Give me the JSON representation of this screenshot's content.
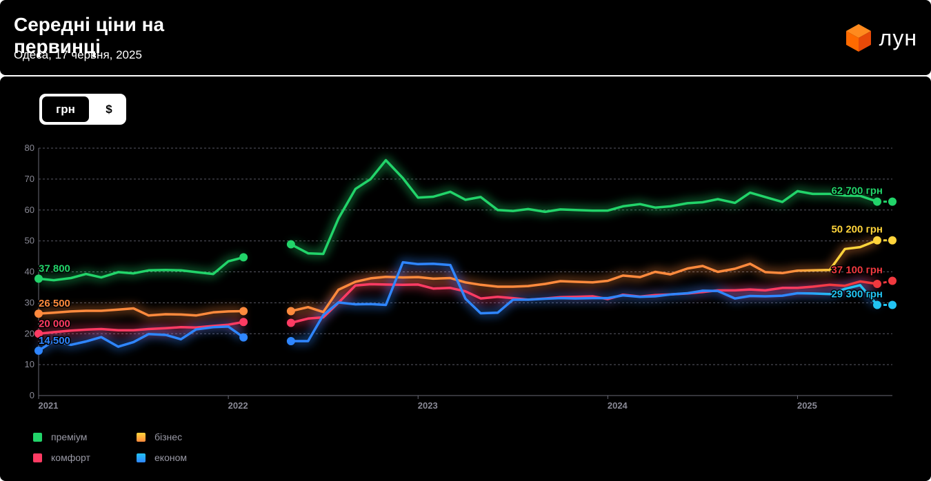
{
  "header": {
    "title": "Середні ціни на первинці",
    "subtitle": "Одеса, 17 червня, 2025",
    "logo_text": "лун",
    "logo_icon": "orange-cube-icon"
  },
  "currency_toggle": {
    "options": [
      "грн",
      "$"
    ],
    "selected": "грн"
  },
  "chart_data": {
    "type": "line",
    "title": "Середні ціни на первинці",
    "x_unit": "year",
    "xlim": [
      2021.0,
      2025.5
    ],
    "ylim": [
      0,
      80
    ],
    "yticks": [
      0,
      10,
      20,
      30,
      40,
      50,
      60,
      70,
      80
    ],
    "xticks": [
      "2021",
      "2022",
      "2023",
      "2024",
      "2025"
    ],
    "grid": "horizontal-dashed",
    "legend_position": "bottom-left",
    "series": [
      {
        "name": "преміум",
        "color": "#22d46a",
        "start_label": "37 800",
        "end_label": "62 700 грн",
        "segments": [
          [
            [
              2021.0,
              37.8
            ],
            [
              2021.08,
              37.3
            ],
            [
              2021.17,
              38.0
            ],
            [
              2021.25,
              39.3
            ],
            [
              2021.33,
              38.2
            ],
            [
              2021.42,
              39.9
            ],
            [
              2021.5,
              39.5
            ],
            [
              2021.58,
              40.5
            ],
            [
              2021.67,
              40.6
            ],
            [
              2021.75,
              40.5
            ],
            [
              2021.83,
              39.9
            ],
            [
              2021.92,
              39.3
            ],
            [
              2022.0,
              43.4
            ],
            [
              2022.08,
              44.7
            ]
          ],
          [
            [
              2022.33,
              48.9
            ],
            [
              2022.42,
              46.0
            ],
            [
              2022.5,
              45.8
            ],
            [
              2022.58,
              57.2
            ],
            [
              2022.67,
              66.8
            ],
            [
              2022.75,
              70.0
            ],
            [
              2022.83,
              76.1
            ],
            [
              2022.92,
              70.3
            ],
            [
              2023.0,
              64.0
            ],
            [
              2023.08,
              64.3
            ],
            [
              2023.17,
              65.9
            ],
            [
              2023.25,
              63.3
            ],
            [
              2023.33,
              64.2
            ],
            [
              2023.42,
              60.0
            ],
            [
              2023.5,
              59.7
            ],
            [
              2023.58,
              60.3
            ],
            [
              2023.67,
              59.4
            ],
            [
              2023.75,
              60.2
            ],
            [
              2023.83,
              60.0
            ],
            [
              2023.92,
              59.8
            ],
            [
              2024.0,
              59.8
            ],
            [
              2024.08,
              61.2
            ],
            [
              2024.17,
              61.9
            ],
            [
              2024.25,
              60.8
            ],
            [
              2024.33,
              61.2
            ],
            [
              2024.42,
              62.2
            ],
            [
              2024.5,
              62.5
            ],
            [
              2024.58,
              63.5
            ],
            [
              2024.67,
              62.3
            ],
            [
              2024.75,
              65.6
            ],
            [
              2024.83,
              64.2
            ],
            [
              2024.92,
              62.6
            ],
            [
              2025.0,
              66.1
            ],
            [
              2025.08,
              65.2
            ],
            [
              2025.17,
              65.2
            ],
            [
              2025.25,
              64.7
            ],
            [
              2025.33,
              64.6
            ],
            [
              2025.42,
              62.7
            ]
          ]
        ],
        "last_point": [
          2025.5,
          62.7
        ]
      },
      {
        "name": "бізнес",
        "color": "#ff8a3d",
        "end_color": "#ffd43b",
        "start_label": "26 500",
        "end_label": "50 200 грн",
        "segments": [
          [
            [
              2021.0,
              26.5
            ],
            [
              2021.08,
              26.8
            ],
            [
              2021.17,
              27.2
            ],
            [
              2021.25,
              27.4
            ],
            [
              2021.33,
              27.4
            ],
            [
              2021.42,
              27.8
            ],
            [
              2021.5,
              28.2
            ],
            [
              2021.58,
              25.9
            ],
            [
              2021.67,
              26.3
            ],
            [
              2021.75,
              26.2
            ],
            [
              2021.83,
              25.9
            ],
            [
              2021.92,
              26.9
            ],
            [
              2022.0,
              27.2
            ],
            [
              2022.08,
              27.3
            ]
          ],
          [
            [
              2022.33,
              27.3
            ],
            [
              2022.42,
              28.6
            ],
            [
              2022.5,
              27.0
            ],
            [
              2022.58,
              34.2
            ],
            [
              2022.67,
              36.8
            ],
            [
              2022.75,
              37.9
            ],
            [
              2022.83,
              38.4
            ],
            [
              2022.92,
              38.2
            ],
            [
              2023.0,
              38.3
            ],
            [
              2023.08,
              37.8
            ],
            [
              2023.17,
              38.0
            ],
            [
              2023.25,
              36.6
            ],
            [
              2023.33,
              35.8
            ],
            [
              2023.42,
              35.2
            ],
            [
              2023.5,
              35.2
            ],
            [
              2023.58,
              35.4
            ],
            [
              2023.67,
              36.1
            ],
            [
              2023.75,
              37.0
            ],
            [
              2023.83,
              36.8
            ],
            [
              2023.92,
              36.6
            ],
            [
              2024.0,
              37.1
            ],
            [
              2024.08,
              38.8
            ],
            [
              2024.17,
              38.3
            ],
            [
              2024.25,
              40.0
            ],
            [
              2024.33,
              39.2
            ],
            [
              2024.42,
              41.1
            ],
            [
              2024.5,
              41.9
            ],
            [
              2024.58,
              40.0
            ],
            [
              2024.67,
              41.0
            ],
            [
              2024.75,
              42.6
            ],
            [
              2024.83,
              39.9
            ],
            [
              2024.92,
              39.6
            ],
            [
              2025.0,
              40.4
            ],
            [
              2025.08,
              40.5
            ],
            [
              2025.17,
              40.6
            ],
            [
              2025.25,
              47.4
            ],
            [
              2025.33,
              48.0
            ],
            [
              2025.42,
              50.2
            ]
          ]
        ],
        "last_point": [
          2025.5,
          50.2
        ]
      },
      {
        "name": "комфорт",
        "color": "#ff3b63",
        "end_color": "#f0393f",
        "start_label": "20 000",
        "end_label": "37 100 грн",
        "segments": [
          [
            [
              2021.0,
              20.0
            ],
            [
              2021.08,
              20.5
            ],
            [
              2021.17,
              21.0
            ],
            [
              2021.25,
              21.3
            ],
            [
              2021.33,
              21.5
            ],
            [
              2021.42,
              21.1
            ],
            [
              2021.5,
              21.1
            ],
            [
              2021.58,
              21.5
            ],
            [
              2021.67,
              21.8
            ],
            [
              2021.75,
              22.1
            ],
            [
              2021.83,
              22.0
            ],
            [
              2021.92,
              22.5
            ],
            [
              2022.0,
              22.9
            ],
            [
              2022.08,
              23.8
            ]
          ],
          [
            [
              2022.33,
              23.5
            ],
            [
              2022.42,
              24.9
            ],
            [
              2022.5,
              25.3
            ],
            [
              2022.58,
              30.0
            ],
            [
              2022.67,
              35.6
            ],
            [
              2022.75,
              36.0
            ],
            [
              2022.83,
              35.9
            ],
            [
              2022.92,
              35.8
            ],
            [
              2023.0,
              35.9
            ],
            [
              2023.08,
              34.6
            ],
            [
              2023.17,
              34.8
            ],
            [
              2023.25,
              33.7
            ],
            [
              2023.33,
              31.4
            ],
            [
              2023.42,
              31.9
            ],
            [
              2023.5,
              31.5
            ],
            [
              2023.58,
              31.0
            ],
            [
              2023.67,
              31.4
            ],
            [
              2023.75,
              31.8
            ],
            [
              2023.83,
              31.9
            ],
            [
              2023.92,
              32.1
            ],
            [
              2024.0,
              31.2
            ],
            [
              2024.08,
              32.6
            ],
            [
              2024.17,
              32.0
            ],
            [
              2024.25,
              32.5
            ],
            [
              2024.33,
              32.7
            ],
            [
              2024.42,
              33.0
            ],
            [
              2024.5,
              33.5
            ],
            [
              2024.58,
              34.0
            ],
            [
              2024.67,
              34.0
            ],
            [
              2024.75,
              34.3
            ],
            [
              2024.83,
              34.0
            ],
            [
              2024.92,
              34.8
            ],
            [
              2025.0,
              34.8
            ],
            [
              2025.08,
              35.2
            ],
            [
              2025.17,
              35.8
            ],
            [
              2025.25,
              35.5
            ],
            [
              2025.33,
              36.9
            ],
            [
              2025.42,
              36.1
            ]
          ]
        ],
        "last_point": [
          2025.5,
          37.1
        ]
      },
      {
        "name": "економ",
        "color": "#2f86ff",
        "end_color": "#22c3f2",
        "start_label": "14 500",
        "end_label": "29 300 грн",
        "segments": [
          [
            [
              2021.0,
              14.5
            ],
            [
              2021.08,
              17.7
            ],
            [
              2021.17,
              16.4
            ],
            [
              2021.25,
              17.5
            ],
            [
              2021.33,
              18.9
            ],
            [
              2021.42,
              15.8
            ],
            [
              2021.5,
              17.3
            ],
            [
              2021.58,
              19.9
            ],
            [
              2021.67,
              19.6
            ],
            [
              2021.75,
              18.2
            ],
            [
              2021.83,
              21.4
            ],
            [
              2021.92,
              22.1
            ],
            [
              2022.0,
              22.3
            ],
            [
              2022.08,
              18.8
            ]
          ],
          [
            [
              2022.33,
              17.6
            ],
            [
              2022.42,
              17.6
            ],
            [
              2022.5,
              26.0
            ],
            [
              2022.58,
              30.1
            ],
            [
              2022.67,
              29.5
            ],
            [
              2022.75,
              29.6
            ],
            [
              2022.83,
              29.3
            ],
            [
              2022.92,
              43.1
            ],
            [
              2023.0,
              42.5
            ],
            [
              2023.08,
              42.6
            ],
            [
              2023.17,
              42.2
            ],
            [
              2023.25,
              31.3
            ],
            [
              2023.33,
              26.6
            ],
            [
              2023.42,
              26.8
            ],
            [
              2023.5,
              31.0
            ],
            [
              2023.58,
              31.0
            ],
            [
              2023.67,
              31.3
            ],
            [
              2023.75,
              31.5
            ],
            [
              2023.83,
              31.4
            ],
            [
              2023.92,
              31.5
            ],
            [
              2024.0,
              31.5
            ],
            [
              2024.08,
              32.4
            ],
            [
              2024.17,
              31.9
            ],
            [
              2024.25,
              32.1
            ],
            [
              2024.33,
              32.7
            ],
            [
              2024.42,
              33.1
            ],
            [
              2024.5,
              33.9
            ],
            [
              2024.58,
              33.8
            ],
            [
              2024.67,
              31.4
            ],
            [
              2024.75,
              32.2
            ],
            [
              2024.83,
              32.1
            ],
            [
              2024.92,
              32.3
            ],
            [
              2025.0,
              33.1
            ],
            [
              2025.08,
              33.0
            ],
            [
              2025.17,
              32.8
            ],
            [
              2025.25,
              34.5
            ],
            [
              2025.33,
              35.7
            ],
            [
              2025.42,
              29.3
            ]
          ]
        ],
        "last_point": [
          2025.5,
          29.3
        ]
      }
    ]
  }
}
